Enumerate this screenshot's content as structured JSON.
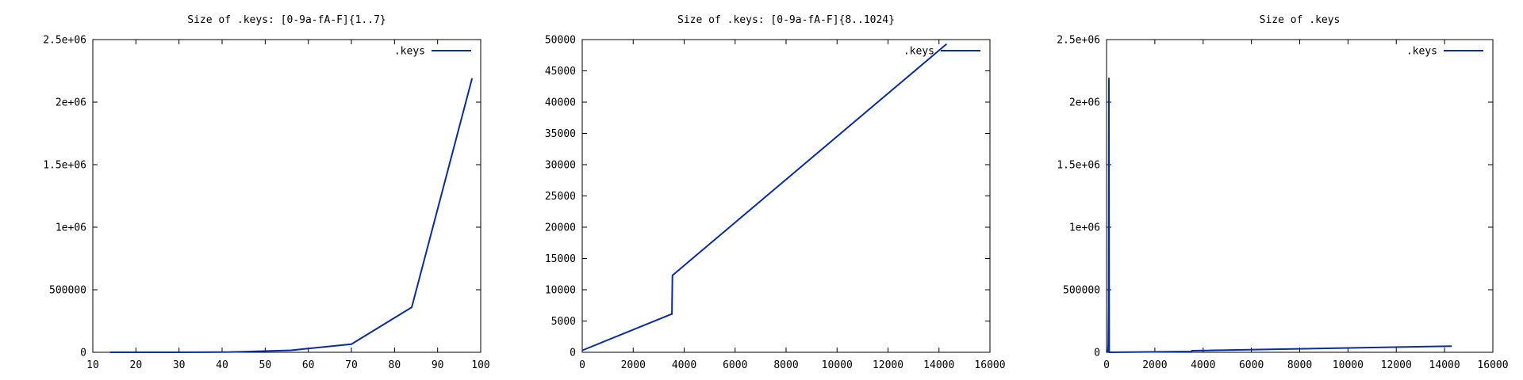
{
  "chart_data": [
    {
      "type": "line",
      "title": "Size of .keys: [0-9a-fA-F]{1..7}",
      "xlabel": "",
      "ylabel": "",
      "xlim": [
        10,
        100
      ],
      "ylim": [
        0,
        2500000
      ],
      "xticks": [
        10,
        20,
        30,
        40,
        50,
        60,
        70,
        80,
        90,
        100
      ],
      "yticks": [
        0,
        500000,
        1000000,
        1500000,
        2000000,
        2500000
      ],
      "xtick_labels": [
        "10",
        "20",
        "30",
        "40",
        "50",
        "60",
        "70",
        "80",
        "90",
        "100"
      ],
      "ytick_labels": [
        "0",
        "500000",
        "1e+06",
        "1.5e+06",
        "2e+06",
        "2.5e+06"
      ],
      "legend_position": "top-right",
      "grid": false,
      "series": [
        {
          "name": ".keys",
          "color": "#0b2c9c",
          "x": [
            14,
            28,
            42,
            45,
            56,
            70,
            84,
            98
          ],
          "y": [
            0,
            100,
            2000,
            5000,
            16000,
            65000,
            360000,
            2190000
          ]
        }
      ]
    },
    {
      "type": "line",
      "title": "Size of .keys: [0-9a-fA-F]{8..1024}",
      "xlabel": "",
      "ylabel": "",
      "xlim": [
        0,
        16000
      ],
      "ylim": [
        0,
        50000
      ],
      "xticks": [
        0,
        2000,
        4000,
        6000,
        8000,
        10000,
        12000,
        14000,
        16000
      ],
      "yticks": [
        0,
        5000,
        10000,
        15000,
        20000,
        25000,
        30000,
        35000,
        40000,
        45000,
        50000
      ],
      "xtick_labels": [
        "0",
        "2000",
        "4000",
        "6000",
        "8000",
        "10000",
        "12000",
        "14000",
        "16000"
      ],
      "ytick_labels": [
        "0",
        "5000",
        "10000",
        "15000",
        "20000",
        "25000",
        "30000",
        "35000",
        "40000",
        "45000",
        "50000"
      ],
      "legend_position": "top-right",
      "grid": false,
      "series": [
        {
          "name": ".keys",
          "color": "#0b2c9c",
          "x": [
            0,
            3500,
            3520,
            3540,
            14300
          ],
          "y": [
            300,
            6100,
            6100,
            12300,
            49300
          ]
        }
      ]
    },
    {
      "type": "line",
      "title": "Size of .keys",
      "xlabel": "",
      "ylabel": "",
      "xlim": [
        0,
        16000
      ],
      "ylim": [
        0,
        2500000
      ],
      "xticks": [
        0,
        2000,
        4000,
        6000,
        8000,
        10000,
        12000,
        14000,
        16000
      ],
      "yticks": [
        0,
        500000,
        1000000,
        1500000,
        2000000,
        2500000
      ],
      "xtick_labels": [
        "0",
        "2000",
        "4000",
        "6000",
        "8000",
        "10000",
        "12000",
        "14000",
        "16000"
      ],
      "ytick_labels": [
        "0",
        "500000",
        "1e+06",
        "1.5e+06",
        "2e+06",
        "2.5e+06"
      ],
      "legend_position": "top-right",
      "grid": false,
      "series": [
        {
          "name": ".keys",
          "color": "#0b2c9c",
          "x": [
            14,
            42,
            56,
            70,
            84,
            98,
            110,
            3500,
            3540,
            14300
          ],
          "y": [
            0,
            2000,
            16000,
            65000,
            360000,
            2190000,
            300,
            6100,
            12300,
            49300
          ]
        }
      ]
    }
  ]
}
